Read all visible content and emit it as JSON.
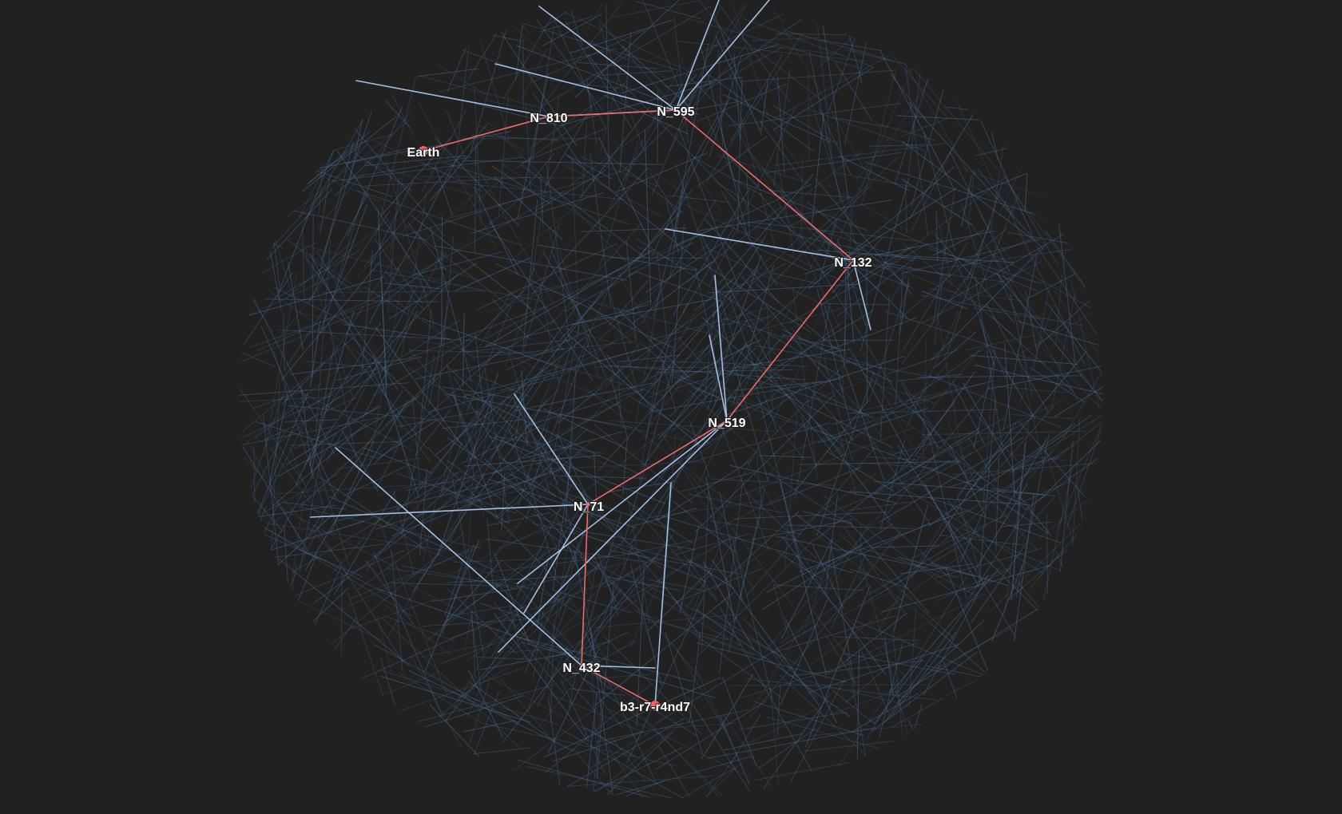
{
  "graph": {
    "colors": {
      "background": "#212121",
      "mesh_edge": "#4f7aa6",
      "neighbor_edge": "#a9c8ee",
      "path_edge": "#f06a6a",
      "endpoint": "#ff5c5c",
      "label": "#ffffff"
    },
    "nodes": [
      {
        "id": "Earth",
        "label": "Earth",
        "endpoint": true
      },
      {
        "id": "N_810",
        "label": "N_810",
        "endpoint": false
      },
      {
        "id": "N_595",
        "label": "N_595",
        "endpoint": false
      },
      {
        "id": "N_132",
        "label": "N_132",
        "endpoint": false
      },
      {
        "id": "N_519",
        "label": "N_519",
        "endpoint": false
      },
      {
        "id": "N_71",
        "label": "N_71",
        "endpoint": false
      },
      {
        "id": "N_432",
        "label": "N_432",
        "endpoint": false
      },
      {
        "id": "b3-r7-r4nd7",
        "label": "b3-r7-r4nd7",
        "endpoint": true
      }
    ],
    "path": [
      "Earth",
      "N_810",
      "N_595",
      "N_132",
      "N_519",
      "N_71",
      "N_432",
      "b3-r7-r4nd7"
    ]
  }
}
